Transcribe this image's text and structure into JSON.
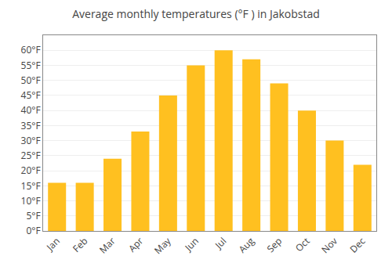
{
  "chart_data": {
    "type": "bar",
    "title": "Average monthly temperatures (°F ) in Jakobstad",
    "categories": [
      "Jan",
      "Feb",
      "Mar",
      "Apr",
      "May",
      "Jun",
      "Jul",
      "Aug",
      "Sep",
      "Oct",
      "Nov",
      "Dec"
    ],
    "values": [
      16,
      16,
      24,
      33,
      45,
      55,
      60,
      57,
      49,
      40,
      30,
      22
    ],
    "color": "#FFC020",
    "ylim": [
      0,
      65
    ],
    "yticks": [
      {
        "value": 0,
        "label": "0°F"
      },
      {
        "value": 5,
        "label": "5°F"
      },
      {
        "value": 10,
        "label": "10°F"
      },
      {
        "value": 15,
        "label": "15°F"
      },
      {
        "value": 20,
        "label": "20°F"
      },
      {
        "value": 25,
        "label": "25°F"
      },
      {
        "value": 30,
        "label": "30°F"
      },
      {
        "value": 35,
        "label": "35°F"
      },
      {
        "value": 40,
        "label": "40°F"
      },
      {
        "value": 45,
        "label": "45°F"
      },
      {
        "value": 50,
        "label": "50°F"
      },
      {
        "value": 55,
        "label": "55°F"
      },
      {
        "value": 60,
        "label": "60°F"
      }
    ],
    "grid": true
  }
}
